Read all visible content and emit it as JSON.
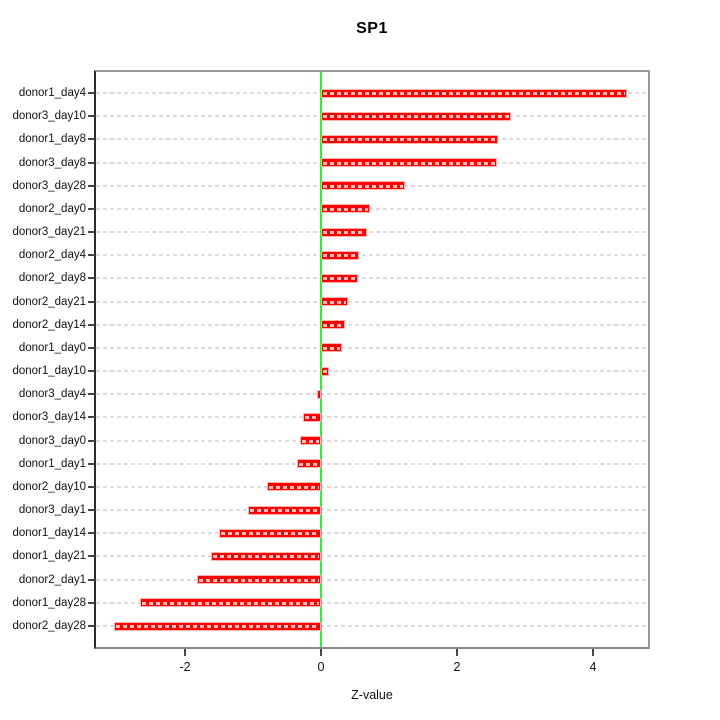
{
  "chart_data": {
    "type": "bar",
    "orientation": "horizontal",
    "title": "SP1",
    "xlabel": "Z-value",
    "ylabel": "",
    "categories": [
      "donor1_day4",
      "donor3_day10",
      "donor1_day8",
      "donor3_day8",
      "donor3_day28",
      "donor2_day0",
      "donor3_day21",
      "donor2_day4",
      "donor2_day8",
      "donor2_day21",
      "donor2_day14",
      "donor1_day0",
      "donor1_day10",
      "donor3_day4",
      "donor3_day14",
      "donor3_day0",
      "donor1_day1",
      "donor2_day10",
      "donor3_day1",
      "donor1_day14",
      "donor1_day21",
      "donor2_day1",
      "donor1_day28",
      "donor2_day28"
    ],
    "values": [
      4.5,
      2.8,
      2.61,
      2.59,
      1.24,
      0.72,
      0.67,
      0.56,
      0.54,
      0.4,
      0.36,
      0.31,
      0.12,
      -0.06,
      -0.26,
      -0.31,
      -0.35,
      -0.79,
      -1.08,
      -1.5,
      -1.62,
      -1.82,
      -2.67,
      -3.05
    ],
    "x_ticks": [
      "-2",
      "0",
      "2",
      "4"
    ],
    "x_tick_values": [
      -2,
      0,
      2,
      4
    ],
    "xlim": [
      -3.31,
      4.81
    ],
    "zero_line_at": 0,
    "grid": "horizontal-dashed",
    "legend_position": "none",
    "colors": {
      "bar": "#FF0000",
      "bar_border": "#FFB3B3",
      "bar_dash": "rgba(255,255,255,0.75)",
      "zero_line": "#27F527",
      "gridline": "#DCDCDC",
      "frame": "#9A9A9A",
      "text": "#111111",
      "background": "#FFFFFF"
    }
  }
}
